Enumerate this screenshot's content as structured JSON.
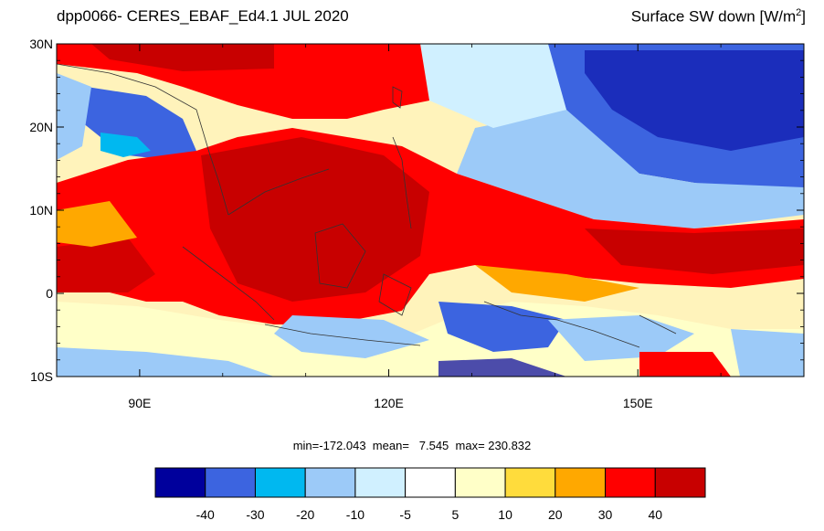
{
  "title": {
    "left": "dpp0066- CERES_EBAF_Ed4.1  JUL 2020",
    "right_main": "Surface SW down [W/m",
    "right_sup": "2",
    "right_close": "]"
  },
  "map": {
    "lon_range": [
      80,
      170
    ],
    "lat_range": [
      -10,
      30
    ],
    "lat_ticks": [
      {
        "value": 30,
        "label": "30N"
      },
      {
        "value": 20,
        "label": "20N"
      },
      {
        "value": 10,
        "label": "10N"
      },
      {
        "value": 0,
        "label": "0"
      },
      {
        "value": -10,
        "label": "10S"
      }
    ],
    "lon_ticks": [
      {
        "value": 90,
        "label": "90E"
      },
      {
        "value": 120,
        "label": "120E"
      },
      {
        "value": 150,
        "label": "150E"
      }
    ]
  },
  "stats": {
    "text": "min=-172.043  mean=   7.545  max= 230.832"
  },
  "colorbar": {
    "colors": [
      "#00009c",
      "#3c64e0",
      "#00b8f0",
      "#9ccaf8",
      "#d0f0ff",
      "#ffffff",
      "#ffffc8",
      "#ffdc3c",
      "#ffa800",
      "#ff0000",
      "#c80000"
    ],
    "labels": [
      "-40",
      "-30",
      "-20",
      "-10",
      "-5",
      "5",
      "10",
      "20",
      "30",
      "40"
    ]
  }
}
